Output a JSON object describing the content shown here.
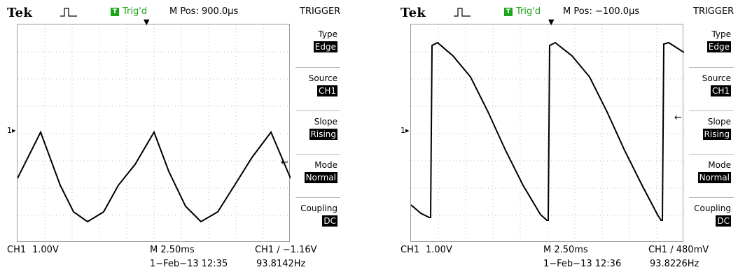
{
  "left": {
    "brand": "Tek",
    "acq_icon": "acquisition-pulse-icon",
    "trig_icon_letter": "T",
    "trig_status": "Trig'd",
    "mpos": "M Pos: 900.0µs",
    "menu_title": "TRIGGER",
    "menu": [
      {
        "label": "Type",
        "value": "Edge"
      },
      {
        "label": "Source",
        "value": "CH1"
      },
      {
        "label": "Slope",
        "value": "Rising"
      },
      {
        "label": "Mode",
        "value": "Normal"
      },
      {
        "label": "Coupling",
        "value": "DC"
      }
    ],
    "ch_marker": "1▸",
    "trig_pos_marker": "▼",
    "trig_level_marker": "←",
    "bottom": {
      "channel": "CH1",
      "volts": "1.00V",
      "timebase": "M 2.50ms",
      "trigger": "CH1 ∕ −1.16V",
      "datetime": "1−Feb−13 12:35",
      "frequency": "93.8142Hz"
    }
  },
  "right": {
    "brand": "Tek",
    "acq_icon": "acquisition-pulse-icon",
    "trig_icon_letter": "T",
    "trig_status": "Trig'd",
    "mpos": "M Pos: −100.0µs",
    "menu_title": "TRIGGER",
    "menu": [
      {
        "label": "Type",
        "value": "Edge"
      },
      {
        "label": "Source",
        "value": "CH1"
      },
      {
        "label": "Slope",
        "value": "Rising"
      },
      {
        "label": "Mode",
        "value": "Normal"
      },
      {
        "label": "Coupling",
        "value": "DC"
      }
    ],
    "ch_marker": "1▸",
    "trig_pos_marker": "▼",
    "trig_level_marker": "←",
    "bottom": {
      "channel": "CH1",
      "volts": "1.00V",
      "timebase": "M 2.50ms",
      "trigger": "CH1 ∕ 480mV",
      "datetime": "1−Feb−13 12:36",
      "frequency": "93.8226Hz"
    }
  }
}
